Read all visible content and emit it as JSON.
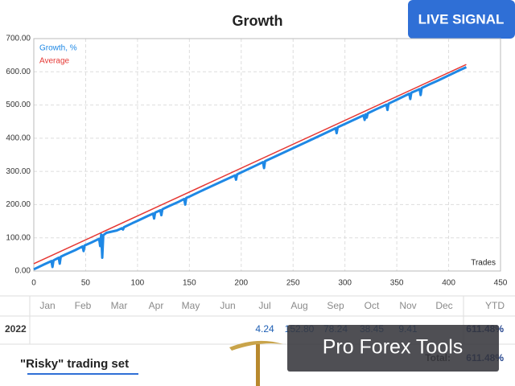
{
  "badge": "LIVE SIGNAL",
  "chart_data": {
    "type": "line",
    "title": "Growth",
    "xlabel": "Trades",
    "xlim": [
      0,
      450
    ],
    "xticks": [
      0,
      50,
      100,
      150,
      200,
      250,
      300,
      350,
      400,
      450
    ],
    "ylim": [
      0,
      700
    ],
    "yticks": [
      {
        "value": 0,
        "label": "0.00"
      },
      {
        "value": 100,
        "label": "100.00"
      },
      {
        "value": 200,
        "label": "200.00"
      },
      {
        "value": 300,
        "label": "300.00"
      },
      {
        "value": 400,
        "label": "400.00"
      },
      {
        "value": 500,
        "label": "500.00"
      },
      {
        "value": 600,
        "label": "600.00"
      },
      {
        "value": 700,
        "label": "700.00"
      }
    ],
    "grid": true,
    "legend": "upper left",
    "series": [
      {
        "name": "Growth, %",
        "color": "#1e88e5",
        "x": [
          0,
          10,
          17,
          18,
          19,
          24,
          25,
          26,
          30,
          40,
          47,
          48,
          49,
          55,
          63,
          64,
          65,
          66,
          67,
          70,
          80,
          85,
          86,
          87,
          95,
          100,
          110,
          115,
          116,
          117,
          122,
          123,
          124,
          130,
          140,
          145,
          146,
          147,
          150,
          160,
          180,
          194,
          195,
          196,
          200,
          215,
          221,
          222,
          223,
          230,
          250,
          270,
          291,
          292,
          293,
          300,
          318,
          319,
          320,
          321,
          322,
          330,
          340,
          341,
          342,
          350,
          360,
          362,
          363,
          364,
          370,
          372,
          373,
          374,
          380,
          390,
          400,
          410,
          417
        ],
        "values": [
          5,
          20,
          30,
          12,
          32,
          40,
          22,
          43,
          49,
          63,
          74,
          60,
          77,
          85,
          97,
          75,
          110,
          40,
          108,
          115,
          122,
          129,
          125,
          132,
          144,
          151,
          166,
          173,
          158,
          176,
          183,
          168,
          186,
          195,
          209,
          217,
          200,
          220,
          224,
          239,
          268,
          288,
          275,
          291,
          297,
          319,
          328,
          310,
          331,
          341,
          370,
          399,
          430,
          415,
          433,
          443,
          469,
          455,
          472,
          462,
          475,
          487,
          501,
          485,
          504,
          516,
          531,
          534,
          518,
          537,
          545,
          548,
          530,
          551,
          560,
          574,
          589,
          604,
          614
        ]
      },
      {
        "name": "Average",
        "color": "#e53935",
        "x": [
          0,
          417
        ],
        "values": [
          22,
          622
        ]
      }
    ]
  },
  "table": {
    "columns": [
      "Jan",
      "Feb",
      "Mar",
      "Apr",
      "May",
      "Jun",
      "Jul",
      "Aug",
      "Sep",
      "Oct",
      "Nov",
      "Dec",
      "YTD"
    ],
    "row": {
      "year": "2022",
      "values": [
        null,
        null,
        null,
        null,
        null,
        null,
        "4.24",
        "152.80",
        "78.24",
        "38.45",
        "9.41",
        null
      ],
      "ytd": "611.48%"
    },
    "total_label": "Total:",
    "total": "611.48%"
  },
  "overlay": "Pro Forex Tools",
  "caption": "\"Risky\" trading set"
}
